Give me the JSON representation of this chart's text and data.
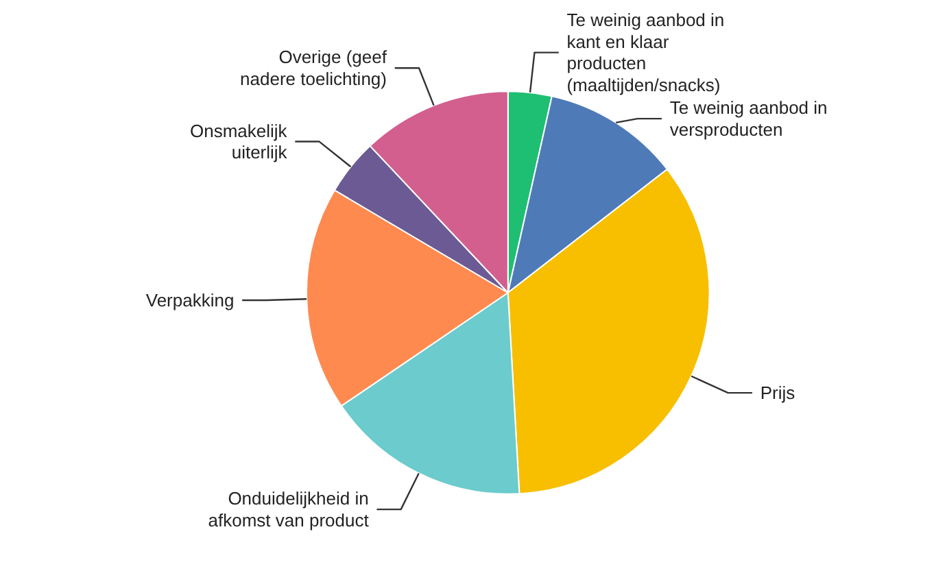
{
  "chart_data": {
    "type": "pie",
    "categories": [
      "Te weinig aanbod in kant en klaar producten (maaltijden/snacks)",
      "Te weinig aanbod in versproducten",
      "Prijs",
      "Onduidelijkheid in afkomst van product",
      "Verpakking",
      "Onsmakelijk uiterlijk",
      "Overige (geef nadere toelichting)"
    ],
    "values": [
      3.5,
      11,
      34.6,
      16.4,
      18,
      4.5,
      12
    ],
    "colors": [
      "#1fbf73",
      "#4f7ab8",
      "#f7bf00",
      "#6ccbcc",
      "#ff8a50",
      "#6b5a93",
      "#d35f8f"
    ]
  }
}
